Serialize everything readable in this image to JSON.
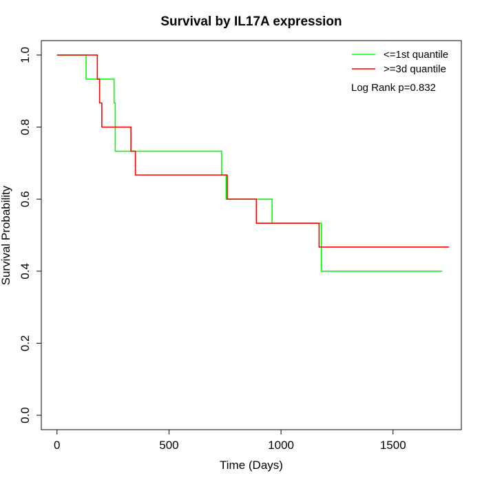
{
  "chart_data": {
    "type": "line",
    "title": "Survival by IL17A expression",
    "xlabel": "Time (Days)",
    "ylabel": "Survival Probability",
    "xlim": [
      -70,
      1805
    ],
    "ylim": [
      -0.04,
      1.04
    ],
    "x_ticks": [
      0,
      500,
      1000,
      1500
    ],
    "y_ticks": [
      0.0,
      0.2,
      0.4,
      0.6,
      0.8,
      1.0
    ],
    "x_tick_labels": [
      "0",
      "500",
      "1000",
      "1500"
    ],
    "y_tick_labels": [
      "0.0",
      "0.2",
      "0.4",
      "0.6",
      "0.8",
      "1.0"
    ],
    "step_type": "post",
    "grid": false,
    "legend_position": "top-right",
    "annotation": "Log Rank p=0.832",
    "series": [
      {
        "name": "<=1st quantile",
        "color": "#00ff00",
        "x": [
          0,
          130,
          255,
          260,
          735,
          755,
          960,
          1180,
          1720
        ],
        "y": [
          1.0,
          0.933,
          0.867,
          0.733,
          0.667,
          0.6,
          0.533,
          0.4,
          0.4
        ]
      },
      {
        "name": ">=3d quantile",
        "color": "#ff0000",
        "x": [
          0,
          180,
          190,
          200,
          330,
          350,
          760,
          890,
          1170,
          1750
        ],
        "y": [
          1.0,
          0.933,
          0.867,
          0.8,
          0.733,
          0.667,
          0.6,
          0.533,
          0.467,
          0.467
        ]
      }
    ]
  }
}
